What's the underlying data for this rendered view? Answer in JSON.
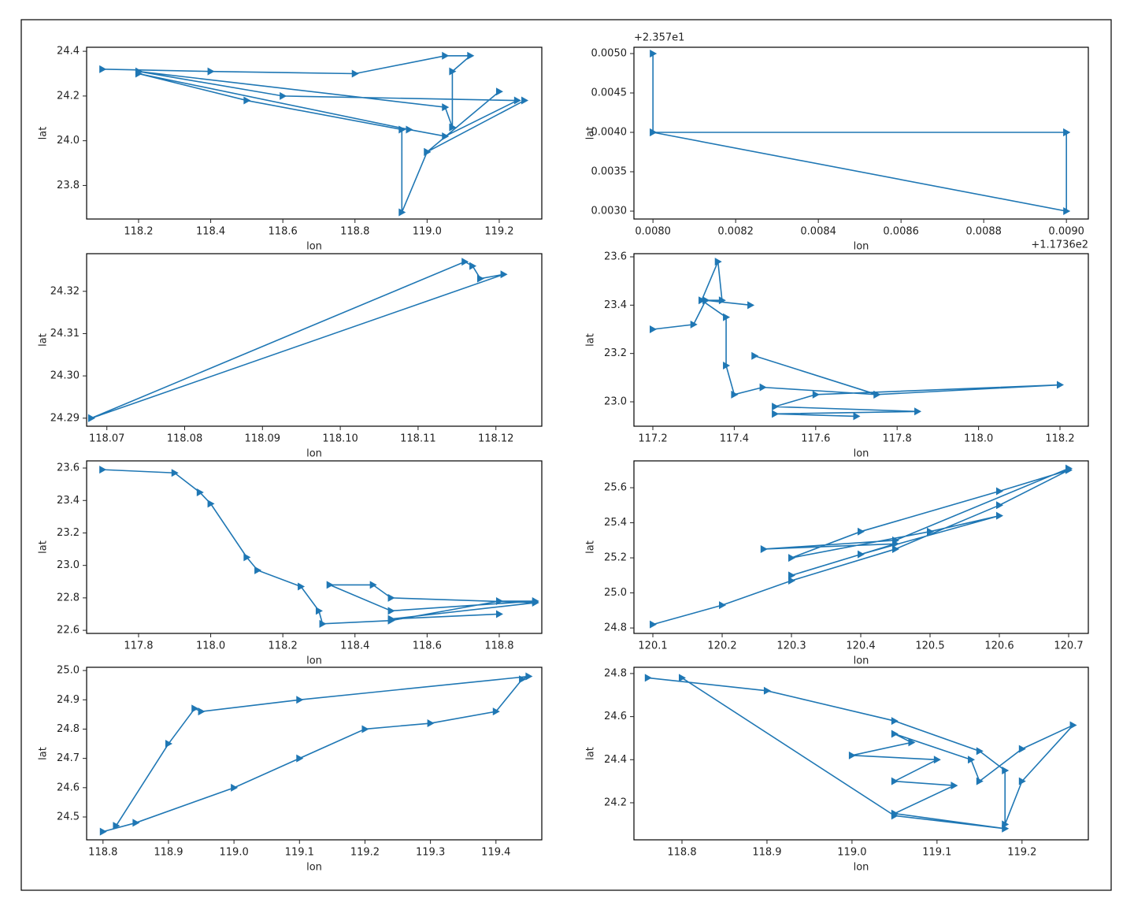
{
  "chart_data": [
    {
      "type": "line",
      "color": "#1f77b4",
      "xlabel": "lon",
      "ylabel": "lat",
      "x": [
        118.1,
        118.4,
        118.8,
        119.05,
        119.12,
        119.07,
        119.07,
        119.05,
        118.2,
        118.6,
        119.25,
        119.05,
        118.95,
        118.2,
        118.5,
        118.93,
        118.93,
        119.0,
        119.2,
        119.0,
        119.27
      ],
      "values": [
        24.32,
        24.31,
        24.3,
        24.38,
        24.38,
        24.31,
        24.06,
        24.15,
        24.31,
        24.2,
        24.18,
        24.02,
        24.05,
        24.3,
        24.18,
        24.05,
        23.68,
        23.95,
        24.22,
        23.95,
        24.18
      ],
      "xlim": [
        118.056,
        119.318
      ],
      "ylim": [
        23.65,
        24.418
      ],
      "xticks": [
        118.2,
        118.4,
        118.6,
        118.8,
        {
          "value": 119.0,
          "label": "119.0"
        },
        119.2
      ],
      "yticks": [
        23.8,
        {
          "value": 24.0,
          "label": "24.0"
        },
        24.2,
        24.4
      ]
    },
    {
      "type": "line",
      "color": "#1f77b4",
      "xlabel": "lon",
      "ylabel": "lat",
      "x_offset_label": "+1.1736e2",
      "y_offset_label": "+2.357e1",
      "x": [
        0.008,
        0.008,
        0.009,
        0.009,
        0.008,
        0.009
      ],
      "values": [
        0.005,
        0.004,
        0.004,
        0.003,
        0.004,
        0.004
      ],
      "xlim": [
        0.007954,
        0.009053
      ],
      "ylim": [
        0.0029,
        0.00508
      ],
      "xticks": [
        {
          "value": 0.008,
          "label": "0.0080"
        },
        0.0082,
        0.0084,
        0.0086,
        0.0088,
        {
          "value": 0.009,
          "label": "0.0090"
        }
      ],
      "yticks": [
        {
          "value": 0.003,
          "label": "0.0030"
        },
        0.0035,
        {
          "value": 0.004,
          "label": "0.0040"
        },
        0.0045,
        {
          "value": 0.005,
          "label": "0.0050"
        }
      ]
    },
    {
      "type": "line",
      "color": "#1f77b4",
      "xlabel": "lon",
      "ylabel": "lat",
      "x": [
        118.068,
        118.116,
        118.117,
        118.118,
        118.121,
        118.068
      ],
      "values": [
        24.29,
        24.327,
        24.326,
        24.323,
        24.324,
        24.29
      ],
      "xlim": [
        118.0674,
        118.1259
      ],
      "ylim": [
        24.2881,
        24.3289
      ],
      "xticks": [
        118.07,
        118.08,
        118.09,
        {
          "value": 118.1,
          "label": "118.10"
        },
        118.11,
        118.12
      ],
      "yticks": [
        24.29,
        {
          "value": 24.3,
          "label": "24.30"
        },
        24.31,
        24.32
      ]
    },
    {
      "type": "line",
      "color": "#1f77b4",
      "xlabel": "lon",
      "ylabel": "lat",
      "x": [
        117.2,
        117.3,
        117.33,
        117.44,
        117.33,
        117.37,
        117.36,
        117.32,
        117.38,
        117.38,
        117.4,
        117.47,
        117.75,
        117.45,
        117.75,
        118.2,
        117.6,
        117.5,
        117.85,
        117.5,
        117.7
      ],
      "values": [
        23.3,
        23.32,
        23.42,
        23.4,
        23.42,
        23.42,
        23.58,
        23.42,
        23.35,
        23.15,
        23.03,
        23.06,
        23.03,
        23.19,
        23.03,
        23.07,
        23.03,
        22.98,
        22.96,
        22.95,
        22.94
      ],
      "xlim": [
        117.1536,
        118.2696
      ],
      "ylim": [
        22.899,
        23.613
      ],
      "xticks": [
        117.2,
        117.4,
        117.6,
        117.8,
        {
          "value": 118.0,
          "label": "118.0"
        },
        118.2
      ],
      "yticks": [
        {
          "value": 23.0,
          "label": "23.0"
        },
        23.2,
        23.4,
        23.6
      ]
    },
    {
      "type": "line",
      "color": "#1f77b4",
      "xlabel": "lon",
      "ylabel": "lat",
      "x": [
        117.7,
        117.9,
        117.97,
        118.0,
        118.1,
        118.13,
        118.25,
        118.3,
        118.31,
        118.5,
        118.8,
        118.9,
        118.5,
        118.33,
        118.45,
        118.5,
        118.9,
        118.5,
        118.8
      ],
      "values": [
        23.59,
        23.57,
        23.45,
        23.38,
        23.05,
        22.97,
        22.87,
        22.72,
        22.64,
        22.66,
        22.78,
        22.78,
        22.72,
        22.88,
        22.88,
        22.8,
        22.77,
        22.67,
        22.7
      ],
      "xlim": [
        117.656,
        118.918
      ],
      "ylim": [
        22.581,
        23.644
      ],
      "xticks": [
        117.8,
        {
          "value": 118.0,
          "label": "118.0"
        },
        118.2,
        118.4,
        118.6,
        118.8
      ],
      "yticks": [
        22.6,
        22.8,
        {
          "value": 23.0,
          "label": "23.0"
        },
        23.2,
        23.4,
        23.6
      ]
    },
    {
      "type": "line",
      "color": "#1f77b4",
      "xlabel": "lon",
      "ylabel": "lat",
      "x": [
        120.1,
        120.2,
        120.3,
        120.45,
        120.6,
        120.7,
        120.6,
        120.4,
        120.3,
        120.5,
        120.6,
        120.4,
        120.3,
        120.45,
        120.26,
        120.45,
        120.7
      ],
      "values": [
        24.82,
        24.93,
        25.07,
        25.25,
        25.5,
        25.7,
        25.58,
        25.35,
        25.2,
        25.35,
        25.44,
        25.22,
        25.1,
        25.28,
        25.25,
        25.3,
        25.71
      ],
      "xlim": [
        120.0727,
        120.7284
      ],
      "ylim": [
        24.769,
        25.753
      ],
      "xticks": [
        120.1,
        120.2,
        120.3,
        120.4,
        120.5,
        120.6,
        120.7
      ],
      "yticks": [
        24.8,
        {
          "value": 25.0,
          "label": "25.0"
        },
        25.2,
        25.4,
        25.6
      ]
    },
    {
      "type": "line",
      "color": "#1f77b4",
      "xlabel": "lon",
      "ylabel": "lat",
      "x": [
        118.8,
        118.85,
        119.0,
        119.1,
        119.2,
        119.3,
        119.4,
        119.44,
        119.45,
        119.1,
        118.95,
        118.94,
        118.9,
        118.82
      ],
      "values": [
        24.45,
        24.48,
        24.6,
        24.7,
        24.8,
        24.82,
        24.86,
        24.97,
        24.98,
        24.9,
        24.86,
        24.87,
        24.75,
        24.47
      ],
      "xlim": [
        118.775,
        119.47
      ],
      "ylim": [
        24.422,
        25.011
      ],
      "xticks": [
        118.8,
        118.9,
        {
          "value": 119.0,
          "label": "119.0"
        },
        119.1,
        119.2,
        119.3,
        119.4
      ],
      "yticks": [
        24.5,
        24.6,
        24.7,
        24.8,
        24.9,
        {
          "value": 25.0,
          "label": "25.0"
        }
      ]
    },
    {
      "type": "line",
      "color": "#1f77b4",
      "xlabel": "lon",
      "ylabel": "lat",
      "x": [
        118.76,
        118.9,
        119.05,
        119.15,
        119.18,
        119.18,
        119.2,
        119.26,
        119.2,
        119.15,
        119.14,
        119.05,
        119.07,
        119.0,
        119.1,
        119.05,
        119.12,
        119.05,
        119.18,
        119.05,
        118.8
      ],
      "values": [
        24.78,
        24.72,
        24.58,
        24.44,
        24.35,
        24.1,
        24.3,
        24.56,
        24.45,
        24.3,
        24.4,
        24.52,
        24.48,
        24.42,
        24.4,
        24.3,
        24.28,
        24.15,
        24.08,
        24.14,
        24.78
      ],
      "xlim": [
        118.7435,
        119.278
      ],
      "ylim": [
        24.028,
        24.829
      ],
      "xticks": [
        118.8,
        118.9,
        {
          "value": 119.0,
          "label": "119.0"
        },
        119.1,
        119.2
      ],
      "yticks": [
        24.2,
        24.4,
        24.6,
        24.8
      ]
    }
  ]
}
